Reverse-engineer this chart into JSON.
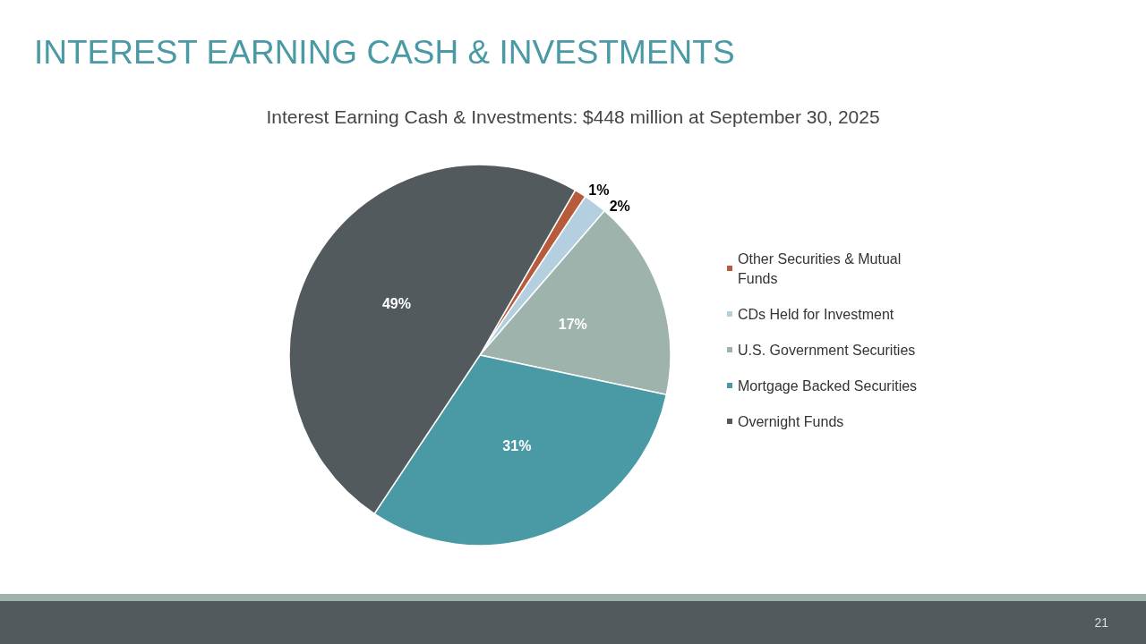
{
  "chart_data": {
    "type": "pie",
    "title": "INTEREST EARNING CASH & INVESTMENTS",
    "subtitle": "Interest Earning Cash & Investments: $448 million at September 30, 2025",
    "categories": [
      "Other Securities & Mutual Funds",
      "CDs Held for Investment",
      "U.S. Government Securities",
      "Mortgage Backed Securities",
      "Overnight Funds"
    ],
    "values": [
      1,
      2,
      17,
      31,
      49
    ],
    "value_labels": [
      "1%",
      "2%",
      "17%",
      "31%",
      "49%"
    ],
    "colors": [
      "#b85a3c",
      "#b4cfe0",
      "#9eb3ac",
      "#4a9aa5",
      "#525a5d"
    ],
    "legend": "right",
    "annotations": [
      "21"
    ]
  }
}
